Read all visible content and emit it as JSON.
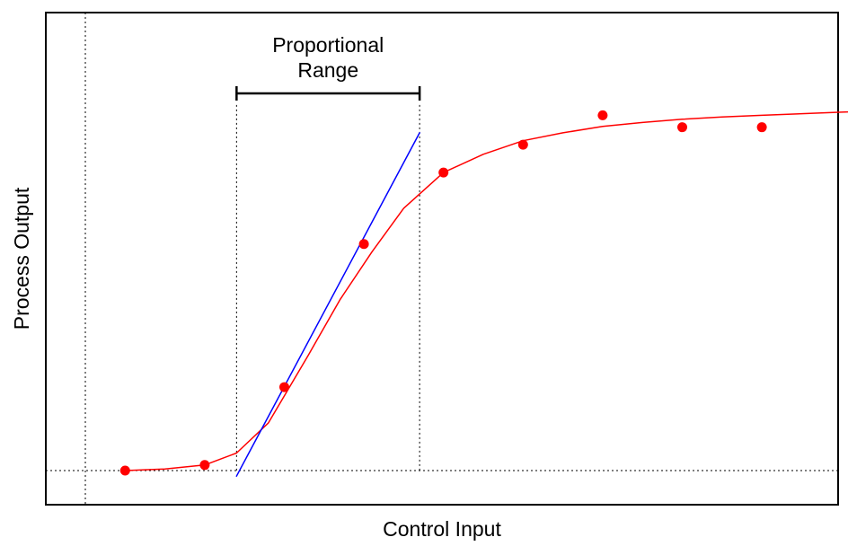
{
  "chart_data": {
    "type": "scatter",
    "title": "",
    "xlabel": "Control Input",
    "ylabel": "Process Output",
    "xlim": [
      0,
      10
    ],
    "ylim": [
      -0.4,
      5.8
    ],
    "grid": false,
    "ticks": false,
    "series": [
      {
        "kind": "points",
        "color": "#ff0000",
        "x": [
          0.5,
          1.5,
          2.5,
          3.5,
          4.5,
          5.5,
          6.5,
          7.5,
          8.5
        ],
        "y": [
          0.0,
          0.07,
          1.05,
          2.85,
          3.75,
          4.1,
          4.47,
          4.32,
          4.32
        ]
      },
      {
        "kind": "fitted-curve",
        "color": "#ff0000",
        "x": [
          0.5,
          1.0,
          1.5,
          1.9,
          2.3,
          2.8,
          3.2,
          3.6,
          4.0,
          4.5,
          5.0,
          5.5,
          6.0,
          6.5,
          7.0,
          7.5,
          8.0,
          8.5,
          9.0,
          9.5,
          10.0
        ],
        "y": [
          0.0,
          0.02,
          0.07,
          0.22,
          0.6,
          1.45,
          2.15,
          2.75,
          3.3,
          3.75,
          3.98,
          4.15,
          4.25,
          4.33,
          4.38,
          4.42,
          4.45,
          4.47,
          4.49,
          4.51,
          4.53
        ]
      },
      {
        "kind": "tangent-line",
        "color": "#0000ff",
        "x": [
          1.9,
          4.2
        ],
        "y": [
          -0.07,
          4.25
        ]
      }
    ],
    "reference_lines": {
      "baseline_y": 0.0,
      "vertical_x": [
        0.0,
        1.9,
        4.2
      ]
    },
    "annotation": {
      "text_line1": "Proportional",
      "text_line2": "Range",
      "x_start": 1.9,
      "x_end": 4.2
    }
  }
}
